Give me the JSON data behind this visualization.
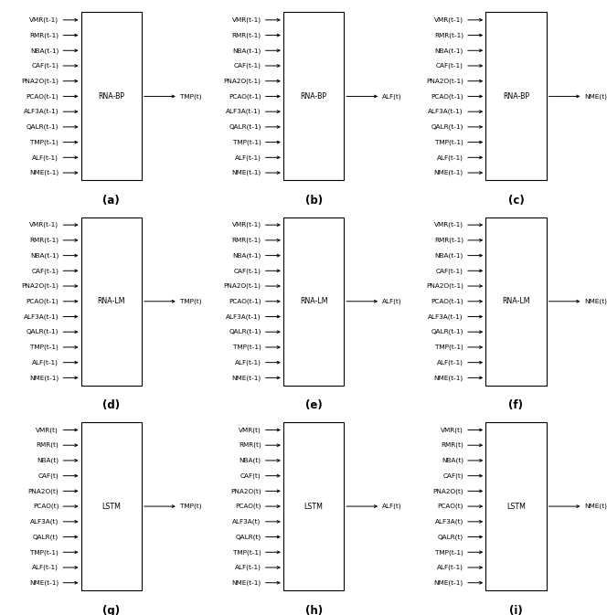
{
  "panels": [
    {
      "label": "(a)",
      "box_text": "RNA-BP",
      "output": "TMP(t)",
      "row": 0,
      "col": 0
    },
    {
      "label": "(b)",
      "box_text": "RNA-BP",
      "output": "ALF(t)",
      "row": 0,
      "col": 1
    },
    {
      "label": "(c)",
      "box_text": "RNA-BP",
      "output": "NME(t)",
      "row": 0,
      "col": 2
    },
    {
      "label": "(d)",
      "box_text": "RNA-LM",
      "output": "TMP(t)",
      "row": 1,
      "col": 0
    },
    {
      "label": "(e)",
      "box_text": "RNA-LM",
      "output": "ALF(t)",
      "row": 1,
      "col": 1
    },
    {
      "label": "(f)",
      "box_text": "RNA-LM",
      "output": "NME(t)",
      "row": 1,
      "col": 2
    },
    {
      "label": "(g)",
      "box_text": "LSTM",
      "output": "TMP(t)",
      "row": 2,
      "col": 0
    },
    {
      "label": "(h)",
      "box_text": "LSTM",
      "output": "ALF(t)",
      "row": 2,
      "col": 1
    },
    {
      "label": "(i)",
      "box_text": "LSTM",
      "output": "NME(t)",
      "row": 2,
      "col": 2
    }
  ],
  "inputs_rows01": [
    "VMR(t-1)",
    "RMR(t-1)",
    "NBA(t-1)",
    "CAF(t-1)",
    "PNA2O(t-1)",
    "PCAO(t-1)",
    "ALF3A(t-1)",
    "QALR(t-1)",
    "TMP(t-1)",
    "ALF(t-1)",
    "NME(t-1)"
  ],
  "inputs_row2": [
    "VMR(t)",
    "RMR(t)",
    "NBA(t)",
    "CAF(t)",
    "PNA2O(t)",
    "PCAO(t)",
    "ALF3A(t)",
    "QALR(t)",
    "TMP(t-1)",
    "ALF(t-1)",
    "NME(t-1)"
  ],
  "bg_color": "#ffffff",
  "box_color": "#ffffff",
  "box_edge_color": "#000000",
  "text_color": "#000000",
  "arrow_color": "#000000",
  "font_size": 5.2,
  "label_font_size": 8.5
}
